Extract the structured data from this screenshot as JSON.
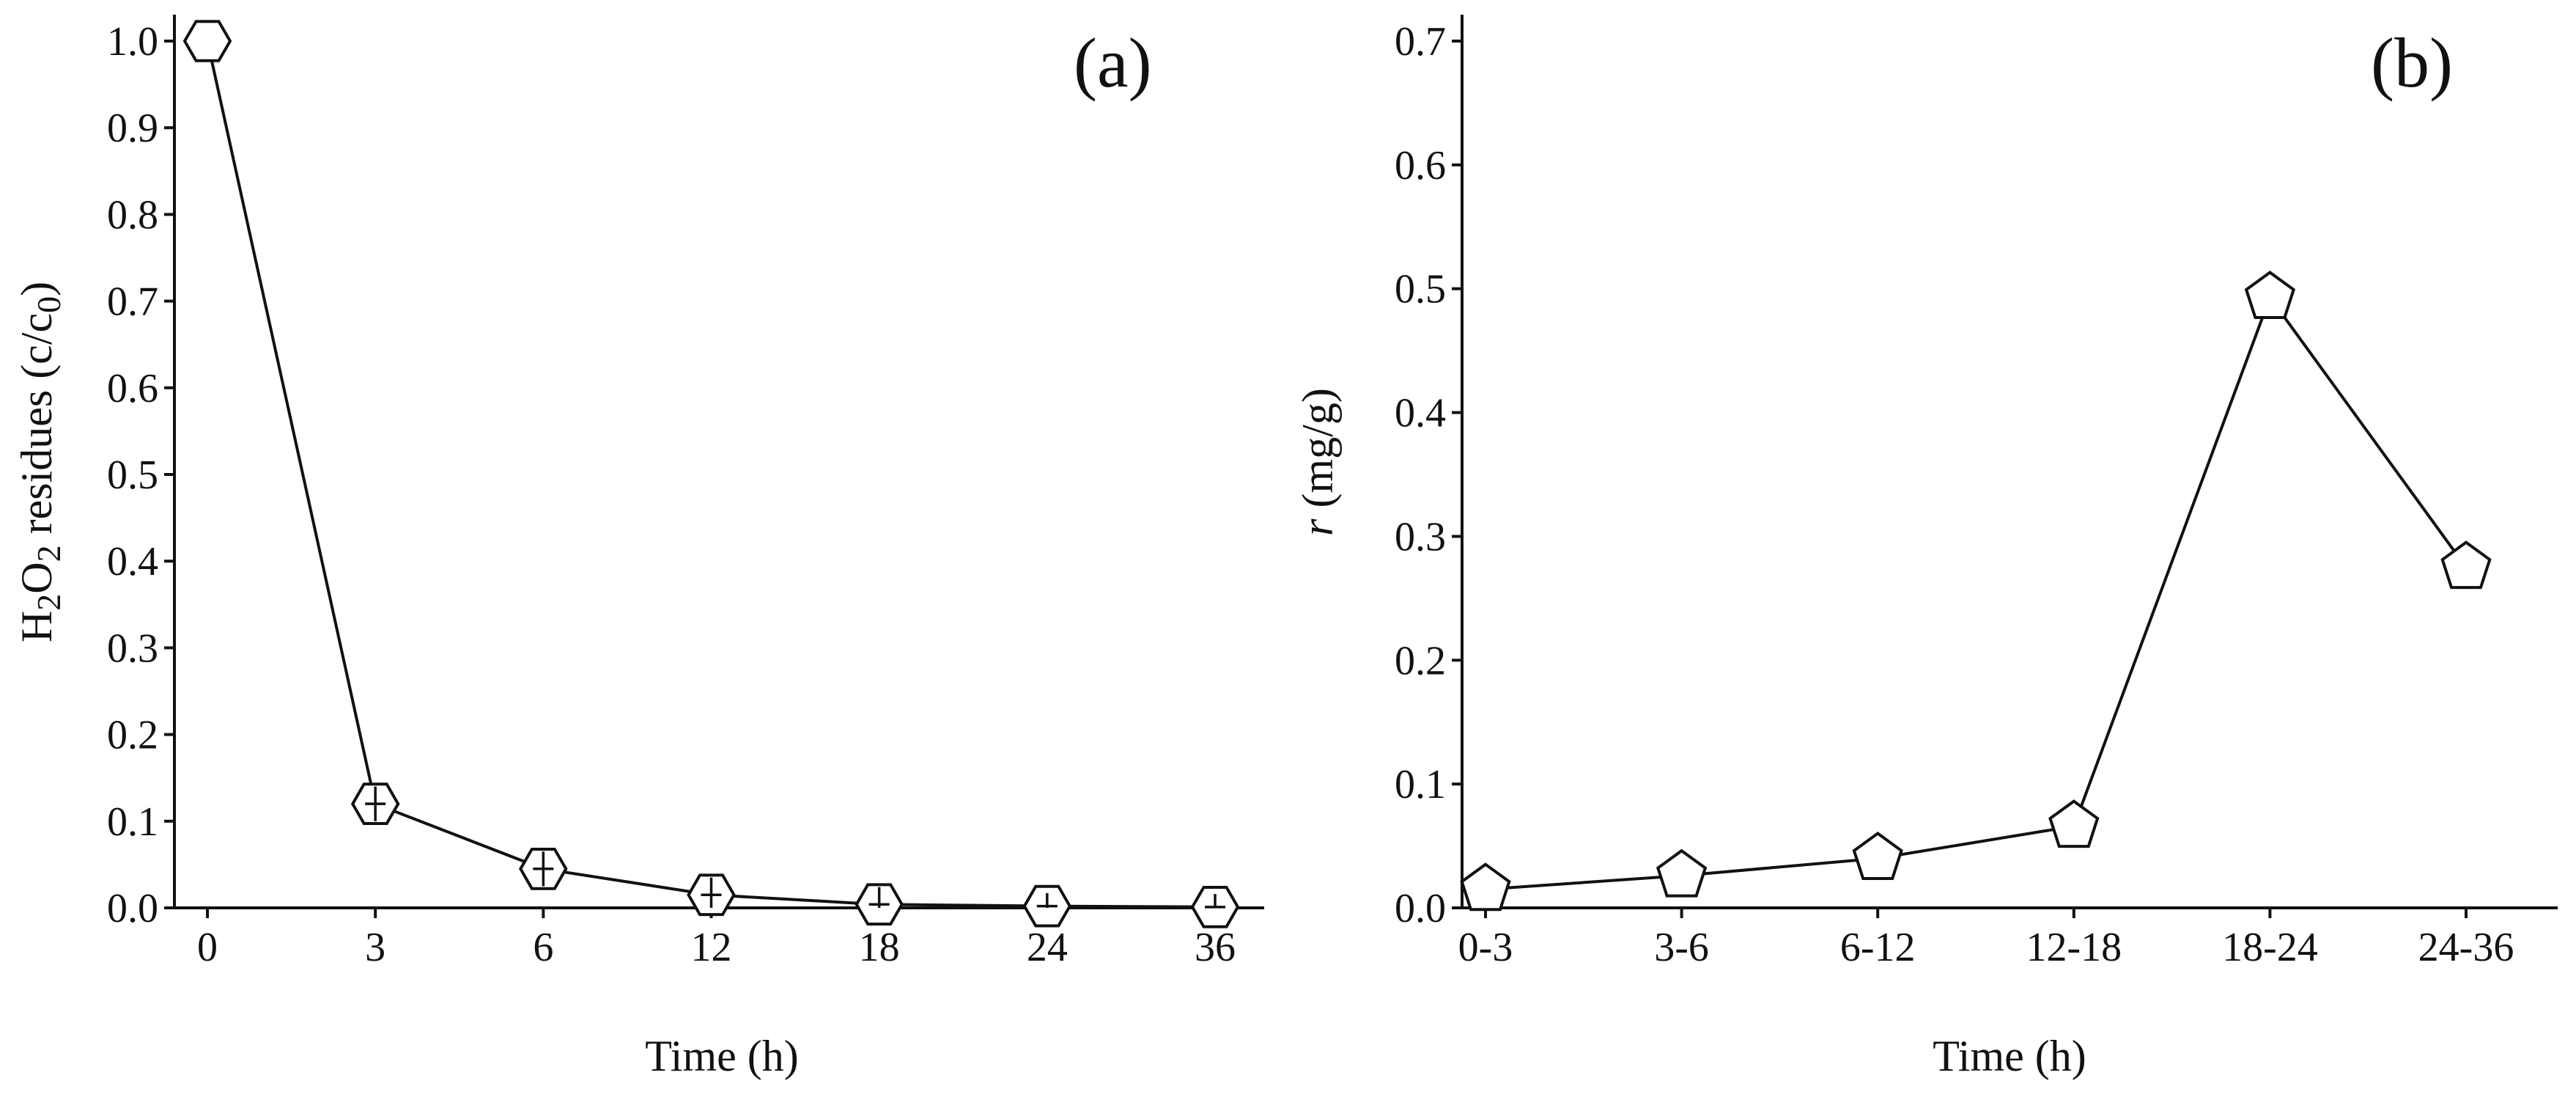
{
  "chart_data": [
    {
      "panel_label": "(a)",
      "type": "line",
      "categories": [
        "0",
        "3",
        "6",
        "12",
        "18",
        "24",
        "36"
      ],
      "series": [
        {
          "values": [
            1.0,
            0.12,
            0.045,
            0.015,
            0.004,
            0.002,
            0.001
          ],
          "error": [
            0.0,
            0.02,
            0.02,
            0.02,
            0.02,
            0.015,
            0.015
          ],
          "marker": "hexagon",
          "color": "#111111"
        }
      ],
      "xlabel": "Time (h)",
      "ylabel": {
        "pre": "H",
        "sub1": "2",
        "mid": "O",
        "sub2": "2",
        "post": " residues (c/c",
        "sub3": "0",
        "close": ")"
      },
      "ylim": [
        0,
        1.0
      ],
      "yticks": [
        "0.0",
        "0.1",
        "0.2",
        "0.3",
        "0.4",
        "0.5",
        "0.6",
        "0.7",
        "0.8",
        "0.9",
        "1.0"
      ],
      "grid": false
    },
    {
      "panel_label": "(b)",
      "type": "line",
      "categories": [
        "0-3",
        "3-6",
        "6-12",
        "12-18",
        "18-24",
        "24-36"
      ],
      "series": [
        {
          "values": [
            0.015,
            0.026,
            0.04,
            0.066,
            0.493,
            0.275
          ],
          "marker": "pentagon",
          "color": "#111111"
        }
      ],
      "xlabel": "Time (h)",
      "ylabel": {
        "italic": "r",
        "rest": " (mg/g)"
      },
      "ylim": [
        0,
        0.7
      ],
      "yticks": [
        "0.0",
        "0.1",
        "0.2",
        "0.3",
        "0.4",
        "0.5",
        "0.6",
        "0.7"
      ],
      "grid": false
    }
  ]
}
